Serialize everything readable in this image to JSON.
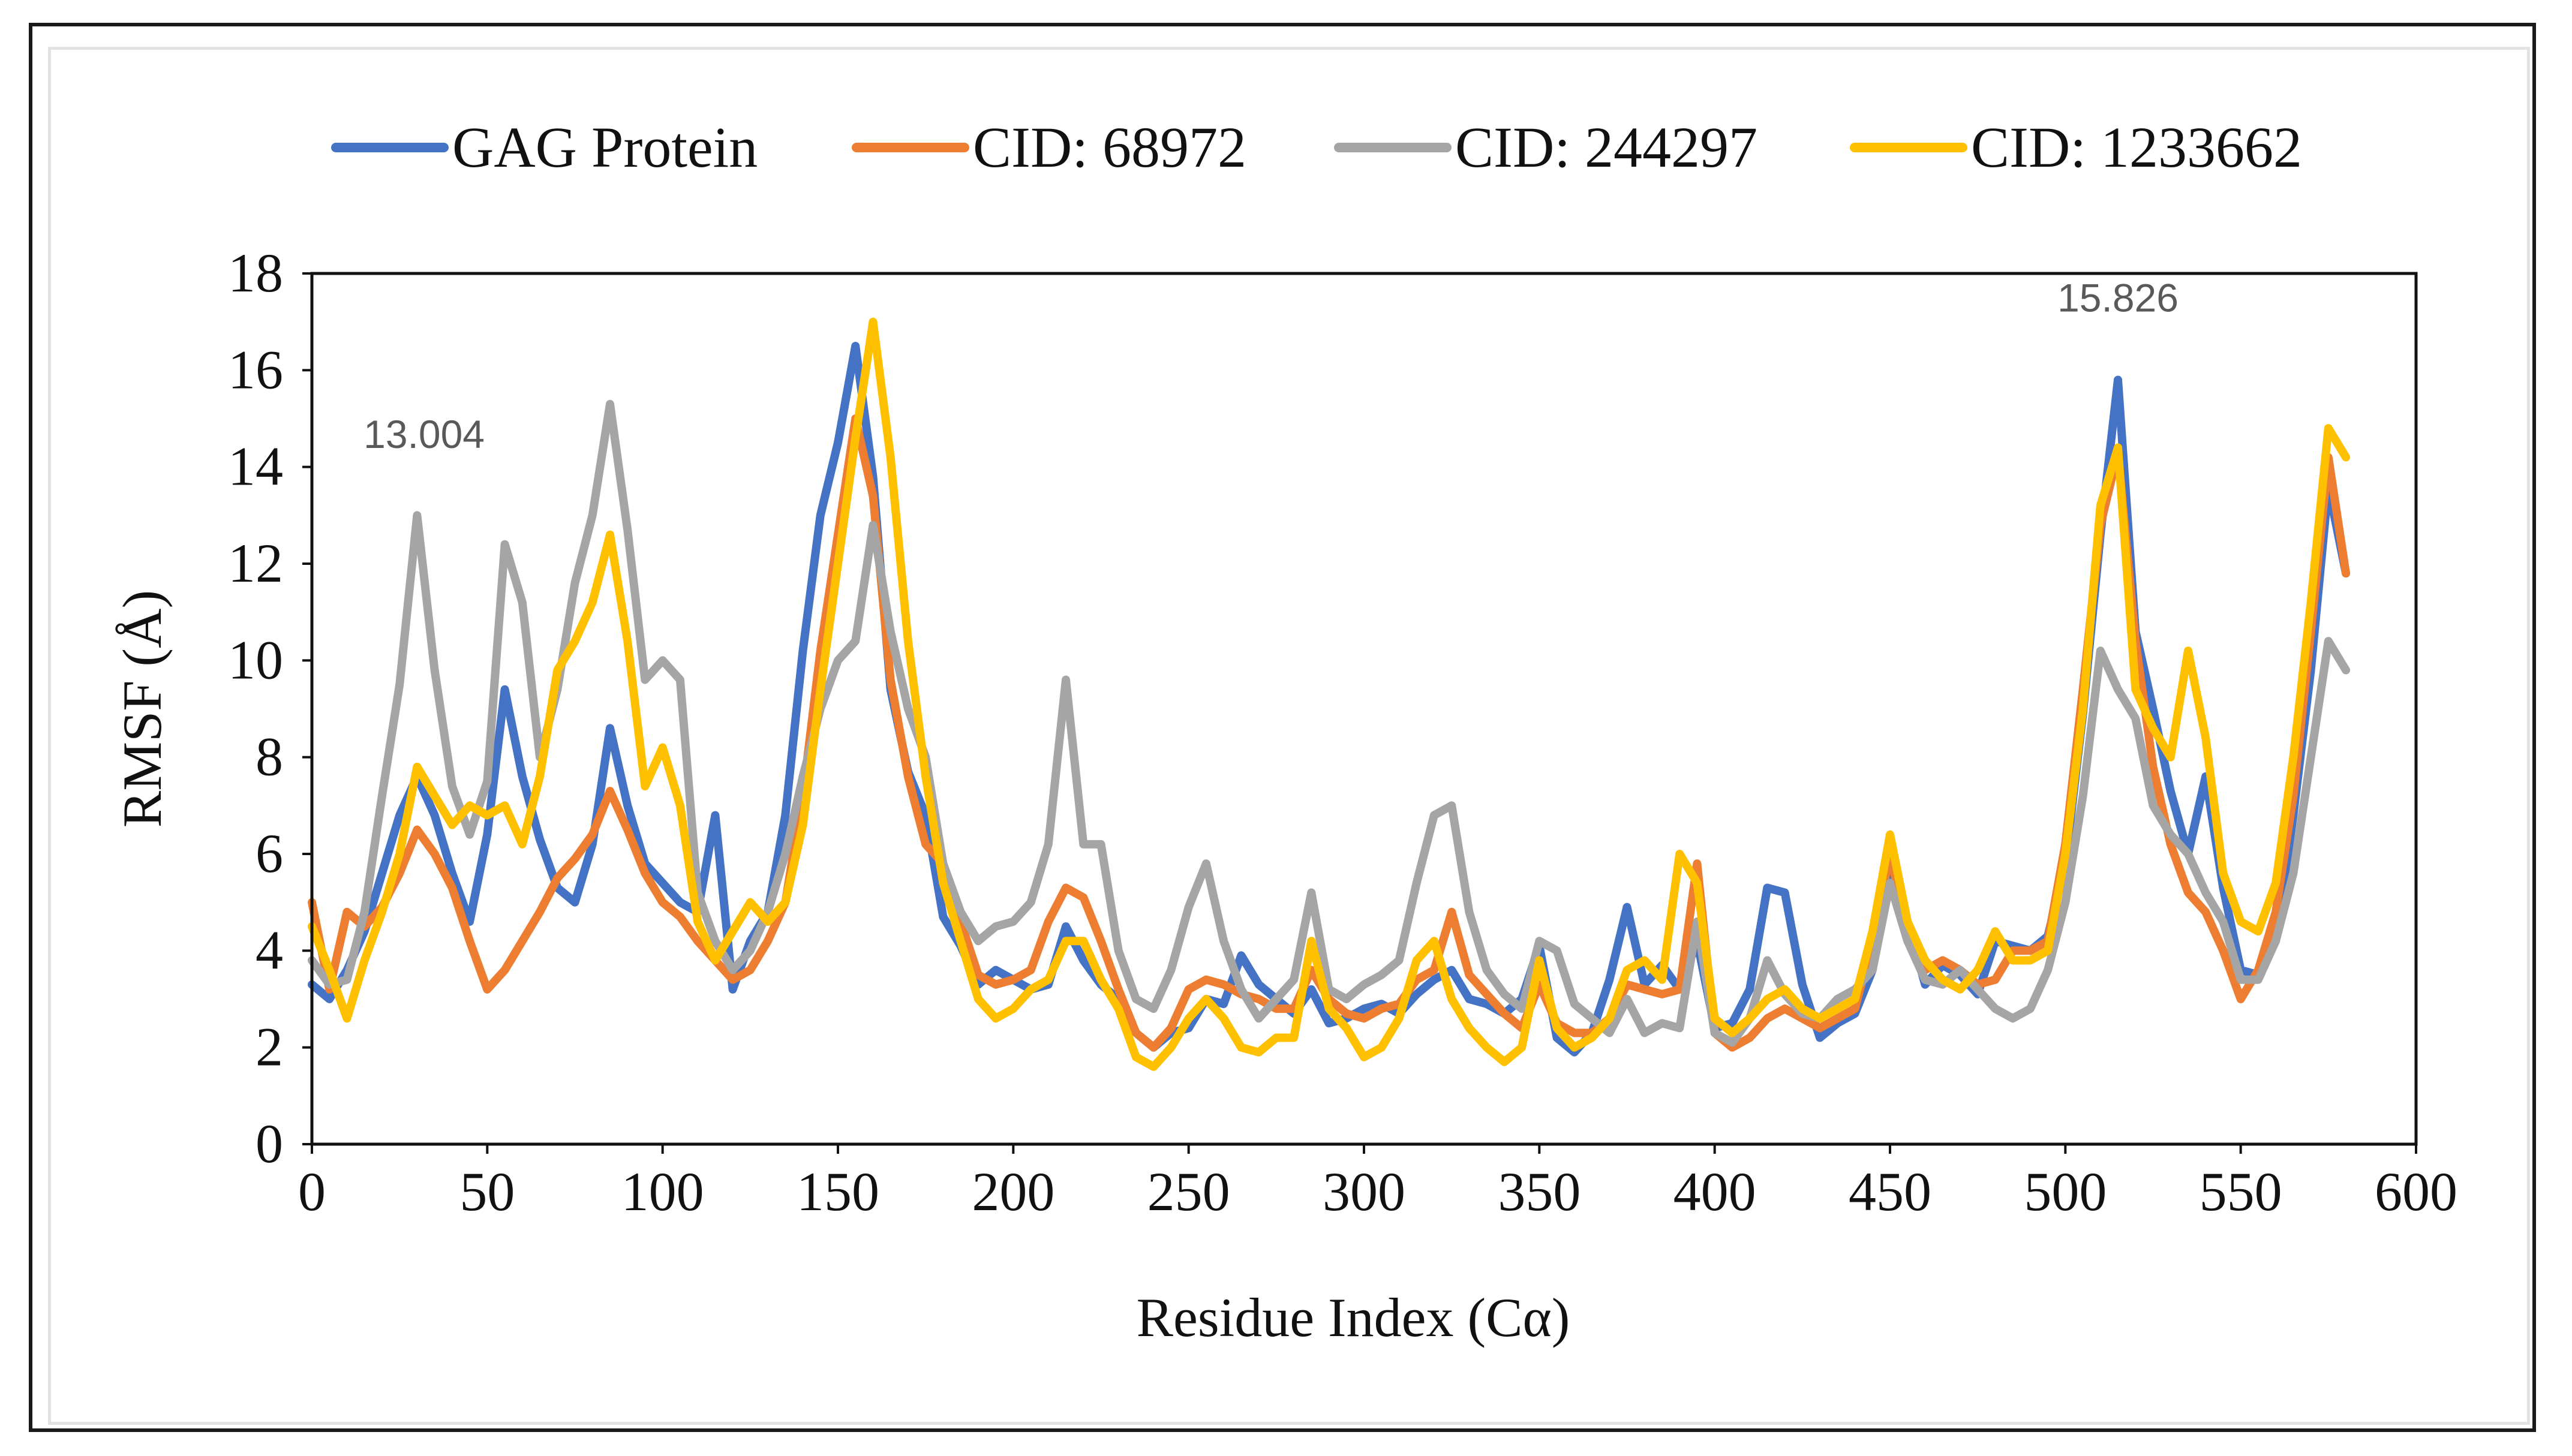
{
  "chart_data": {
    "type": "line",
    "title": "",
    "xlabel": "Residue Index (Cα)",
    "ylabel": "RMSF (Å)",
    "xlim": [
      0,
      600
    ],
    "ylim": [
      0,
      18
    ],
    "x_ticks": [
      0,
      50,
      100,
      150,
      200,
      250,
      300,
      350,
      400,
      450,
      500,
      550,
      600
    ],
    "y_ticks": [
      0,
      2,
      4,
      6,
      8,
      10,
      12,
      14,
      16,
      18
    ],
    "grid": false,
    "legend_position": "top",
    "annotations": [
      {
        "text": "13.004",
        "x": 32,
        "y": 13.004
      },
      {
        "text": "15.826",
        "x": 515,
        "y": 15.826
      }
    ],
    "series": [
      {
        "name": "GAG Protein",
        "color": "#4472C4",
        "x": [
          0,
          5,
          10,
          15,
          20,
          25,
          30,
          35,
          40,
          45,
          50,
          55,
          60,
          65,
          70,
          75,
          80,
          85,
          90,
          95,
          100,
          105,
          110,
          115,
          120,
          125,
          130,
          135,
          140,
          145,
          150,
          155,
          160,
          165,
          170,
          175,
          180,
          185,
          190,
          195,
          200,
          205,
          210,
          215,
          220,
          225,
          230,
          235,
          240,
          245,
          250,
          255,
          260,
          265,
          270,
          275,
          280,
          285,
          290,
          295,
          300,
          305,
          310,
          315,
          320,
          325,
          330,
          335,
          340,
          345,
          350,
          355,
          360,
          365,
          370,
          375,
          380,
          385,
          390,
          395,
          400,
          405,
          410,
          415,
          420,
          425,
          430,
          435,
          440,
          445,
          450,
          455,
          460,
          465,
          470,
          475,
          480,
          485,
          490,
          495,
          500,
          505,
          510,
          515,
          520,
          525,
          530,
          535,
          540,
          545,
          550,
          555,
          560,
          565,
          570,
          575,
          580
        ],
        "values": [
          3.3,
          3.0,
          3.6,
          4.4,
          5.6,
          6.8,
          7.6,
          6.8,
          5.6,
          4.6,
          6.4,
          9.4,
          7.6,
          6.3,
          5.3,
          5.0,
          6.2,
          8.6,
          7.0,
          5.8,
          5.4,
          5.0,
          4.8,
          6.8,
          3.2,
          4.2,
          4.8,
          6.8,
          10.2,
          13.0,
          14.5,
          16.5,
          13.8,
          9.4,
          7.7,
          6.8,
          4.7,
          4.1,
          3.3,
          3.6,
          3.4,
          3.2,
          3.3,
          4.5,
          3.8,
          3.3,
          3.0,
          2.3,
          2.0,
          2.3,
          2.4,
          3.0,
          2.9,
          3.9,
          3.3,
          3.0,
          2.7,
          3.2,
          2.5,
          2.6,
          2.8,
          2.9,
          2.7,
          3.1,
          3.4,
          3.6,
          3.0,
          2.9,
          2.7,
          3.0,
          4.1,
          2.2,
          1.9,
          2.3,
          3.4,
          4.9,
          3.3,
          3.7,
          3.2,
          4.2,
          2.4,
          2.5,
          3.2,
          5.3,
          5.2,
          3.3,
          2.2,
          2.5,
          2.7,
          3.6,
          5.7,
          4.6,
          3.3,
          3.7,
          3.5,
          3.1,
          4.2,
          4.1,
          4.0,
          4.3,
          5.8,
          8.9,
          12.6,
          15.8,
          10.6,
          9.0,
          7.3,
          6.0,
          7.6,
          5.3,
          3.6,
          3.5,
          4.2,
          6.8,
          9.8,
          13.6,
          11.8
        ]
      },
      {
        "name": "CID: 68972",
        "color": "#ED7D31",
        "x": [
          0,
          5,
          10,
          15,
          20,
          25,
          30,
          35,
          40,
          45,
          50,
          55,
          60,
          65,
          70,
          75,
          80,
          85,
          90,
          95,
          100,
          105,
          110,
          115,
          120,
          125,
          130,
          135,
          140,
          145,
          150,
          155,
          160,
          165,
          170,
          175,
          180,
          185,
          190,
          195,
          200,
          205,
          210,
          215,
          220,
          225,
          230,
          235,
          240,
          245,
          250,
          255,
          260,
          265,
          270,
          275,
          280,
          285,
          290,
          295,
          300,
          305,
          310,
          315,
          320,
          325,
          330,
          335,
          340,
          345,
          350,
          355,
          360,
          365,
          370,
          375,
          380,
          385,
          390,
          395,
          400,
          405,
          410,
          415,
          420,
          425,
          430,
          435,
          440,
          445,
          450,
          455,
          460,
          465,
          470,
          475,
          480,
          485,
          490,
          495,
          500,
          505,
          510,
          515,
          520,
          525,
          530,
          535,
          540,
          545,
          550,
          555,
          560,
          565,
          570,
          575,
          580
        ],
        "values": [
          5.0,
          3.2,
          4.8,
          4.5,
          4.9,
          5.6,
          6.5,
          6.0,
          5.3,
          4.2,
          3.2,
          3.6,
          4.2,
          4.8,
          5.5,
          5.9,
          6.4,
          7.3,
          6.5,
          5.6,
          5.0,
          4.7,
          4.2,
          3.8,
          3.4,
          3.6,
          4.2,
          5.0,
          7.2,
          10.2,
          12.6,
          15.0,
          13.4,
          9.6,
          7.6,
          6.2,
          5.8,
          4.6,
          3.5,
          3.3,
          3.4,
          3.6,
          4.6,
          5.3,
          5.1,
          4.2,
          3.2,
          2.3,
          2.0,
          2.4,
          3.2,
          3.4,
          3.3,
          3.1,
          3.0,
          2.8,
          2.8,
          3.6,
          3.0,
          2.7,
          2.6,
          2.8,
          2.9,
          3.4,
          3.6,
          4.8,
          3.5,
          3.1,
          2.7,
          2.4,
          3.3,
          2.5,
          2.3,
          2.3,
          2.6,
          3.3,
          3.2,
          3.1,
          3.2,
          5.8,
          2.3,
          2.0,
          2.2,
          2.6,
          2.8,
          2.6,
          2.4,
          2.6,
          2.8,
          4.2,
          6.0,
          4.4,
          3.6,
          3.8,
          3.6,
          3.3,
          3.4,
          4.0,
          4.0,
          4.2,
          6.2,
          9.4,
          12.8,
          14.3,
          10.4,
          7.8,
          6.2,
          5.2,
          4.8,
          4.0,
          3.0,
          3.6,
          4.8,
          7.2,
          10.6,
          14.2,
          11.8
        ]
      },
      {
        "name": "CID: 244297",
        "color": "#A5A5A5",
        "x": [
          0,
          5,
          10,
          15,
          20,
          25,
          30,
          35,
          40,
          45,
          50,
          55,
          60,
          65,
          70,
          75,
          80,
          85,
          90,
          95,
          100,
          105,
          110,
          115,
          120,
          125,
          130,
          135,
          140,
          145,
          150,
          155,
          160,
          165,
          170,
          175,
          180,
          185,
          190,
          195,
          200,
          205,
          210,
          215,
          220,
          225,
          230,
          235,
          240,
          245,
          250,
          255,
          260,
          265,
          270,
          275,
          280,
          285,
          290,
          295,
          300,
          305,
          310,
          315,
          320,
          325,
          330,
          335,
          340,
          345,
          350,
          355,
          360,
          365,
          370,
          375,
          380,
          385,
          390,
          395,
          400,
          405,
          410,
          415,
          420,
          425,
          430,
          435,
          440,
          445,
          450,
          455,
          460,
          465,
          470,
          475,
          480,
          485,
          490,
          495,
          500,
          505,
          510,
          515,
          520,
          525,
          530,
          535,
          540,
          545,
          550,
          555,
          560,
          565,
          570,
          575,
          580
        ],
        "values": [
          3.8,
          3.3,
          3.4,
          4.8,
          7.2,
          9.5,
          13.0,
          9.8,
          7.4,
          6.4,
          7.5,
          12.4,
          11.2,
          8.0,
          9.4,
          11.6,
          13.0,
          15.3,
          12.7,
          9.6,
          10.0,
          9.6,
          5.2,
          4.2,
          3.6,
          4.0,
          4.8,
          6.0,
          7.6,
          9.0,
          10.0,
          10.4,
          12.8,
          10.6,
          9.0,
          8.0,
          5.8,
          4.8,
          4.2,
          4.5,
          4.6,
          5.0,
          6.2,
          9.6,
          6.2,
          6.2,
          4.0,
          3.0,
          2.8,
          3.6,
          4.9,
          5.8,
          4.2,
          3.2,
          2.6,
          3.0,
          3.4,
          5.2,
          3.2,
          3.0,
          3.3,
          3.5,
          3.8,
          5.4,
          6.8,
          7.0,
          4.8,
          3.6,
          3.1,
          2.8,
          4.2,
          4.0,
          2.9,
          2.6,
          2.3,
          3.0,
          2.3,
          2.5,
          2.4,
          4.6,
          2.3,
          2.1,
          2.6,
          3.8,
          3.1,
          2.7,
          2.6,
          3.0,
          3.2,
          3.6,
          5.4,
          4.2,
          3.4,
          3.3,
          3.6,
          3.2,
          2.8,
          2.6,
          2.8,
          3.6,
          5.0,
          7.2,
          10.2,
          9.4,
          8.8,
          7.0,
          6.4,
          6.0,
          5.2,
          4.6,
          3.4,
          3.4,
          4.2,
          5.6,
          8.0,
          10.4,
          9.8
        ]
      },
      {
        "name": "CID: 1233662",
        "color": "#FFC000",
        "x": [
          0,
          5,
          10,
          15,
          20,
          25,
          30,
          35,
          40,
          45,
          50,
          55,
          60,
          65,
          70,
          75,
          80,
          85,
          90,
          95,
          100,
          105,
          110,
          115,
          120,
          125,
          130,
          135,
          140,
          145,
          150,
          155,
          160,
          165,
          170,
          175,
          180,
          185,
          190,
          195,
          200,
          205,
          210,
          215,
          220,
          225,
          230,
          235,
          240,
          245,
          250,
          255,
          260,
          265,
          270,
          275,
          280,
          285,
          290,
          295,
          300,
          305,
          310,
          315,
          320,
          325,
          330,
          335,
          340,
          345,
          350,
          355,
          360,
          365,
          370,
          375,
          380,
          385,
          390,
          395,
          400,
          405,
          410,
          415,
          420,
          425,
          430,
          435,
          440,
          445,
          450,
          455,
          460,
          465,
          470,
          475,
          480,
          485,
          490,
          495,
          500,
          505,
          510,
          515,
          520,
          525,
          530,
          535,
          540,
          545,
          550,
          555,
          560,
          565,
          570,
          575,
          580
        ],
        "values": [
          4.5,
          3.6,
          2.6,
          3.8,
          4.8,
          6.0,
          7.8,
          7.2,
          6.6,
          7.0,
          6.8,
          7.0,
          6.2,
          7.6,
          9.8,
          10.4,
          11.2,
          12.6,
          10.4,
          7.4,
          8.2,
          7.0,
          4.6,
          3.8,
          4.4,
          5.0,
          4.6,
          5.0,
          6.6,
          9.4,
          12.0,
          14.6,
          17.0,
          14.2,
          10.4,
          7.6,
          5.4,
          4.2,
          3.0,
          2.6,
          2.8,
          3.2,
          3.4,
          4.2,
          4.2,
          3.4,
          2.8,
          1.8,
          1.6,
          2.0,
          2.6,
          3.0,
          2.6,
          2.0,
          1.9,
          2.2,
          2.2,
          4.2,
          2.8,
          2.4,
          1.8,
          2.0,
          2.6,
          3.8,
          4.2,
          3.0,
          2.4,
          2.0,
          1.7,
          2.0,
          3.8,
          2.4,
          2.0,
          2.2,
          2.6,
          3.6,
          3.8,
          3.4,
          6.0,
          5.4,
          2.6,
          2.3,
          2.6,
          3.0,
          3.2,
          2.8,
          2.6,
          2.8,
          3.0,
          4.4,
          6.4,
          4.6,
          3.8,
          3.4,
          3.2,
          3.6,
          4.4,
          3.8,
          3.8,
          4.0,
          6.0,
          9.0,
          13.2,
          14.4,
          9.4,
          8.6,
          8.0,
          10.2,
          8.4,
          5.6,
          4.6,
          4.4,
          5.4,
          8.0,
          11.2,
          14.8,
          14.2
        ]
      }
    ]
  }
}
